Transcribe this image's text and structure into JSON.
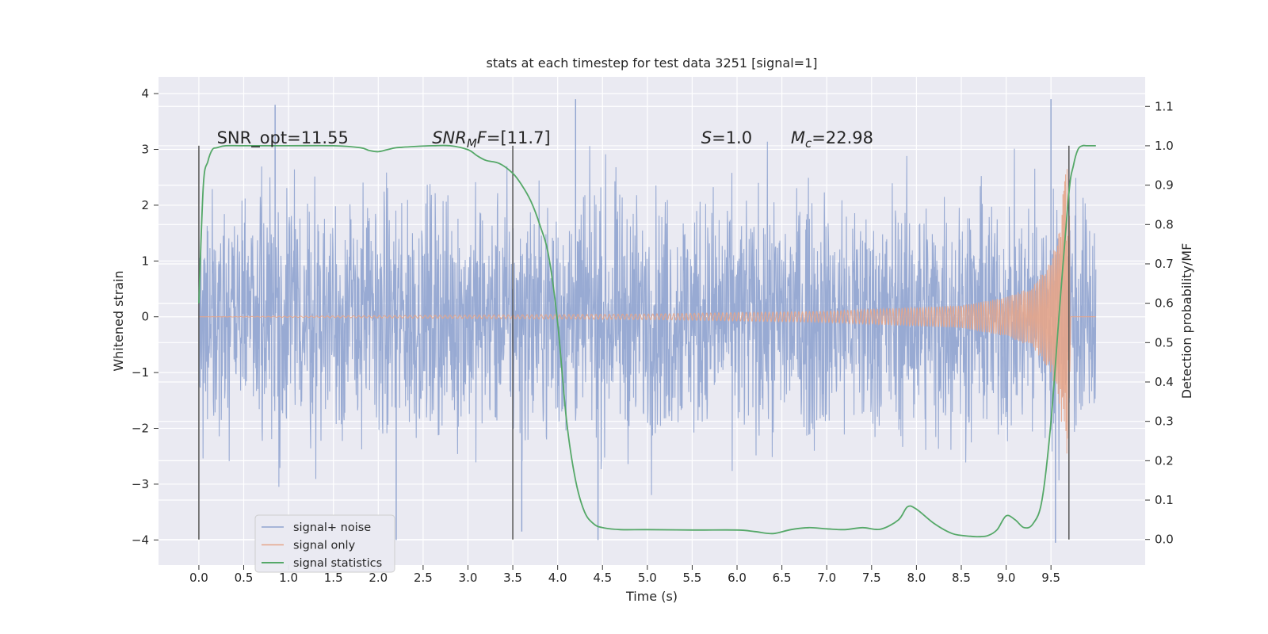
{
  "chart_data": {
    "type": "line",
    "title": "stats at each timestep for test data 3251 [signal=1]",
    "xlabel": "Time (s)",
    "ylabel": "Whitened strain",
    "y2label": "Detection probability/MF",
    "xlim": [
      -0.45,
      10.55
    ],
    "ylim": [
      -4.45,
      4.3
    ],
    "y2lim": [
      -0.065,
      1.175
    ],
    "x_ticks": [
      "0.0",
      "0.5",
      "1.0",
      "1.5",
      "2.0",
      "2.5",
      "3.0",
      "3.5",
      "4.0",
      "4.5",
      "5.0",
      "5.5",
      "6.0",
      "6.5",
      "7.0",
      "7.5",
      "8.0",
      "8.5",
      "9.0",
      "9.5"
    ],
    "y_ticks": [
      "4",
      "3",
      "2",
      "1",
      "0",
      "−1",
      "−2",
      "−3",
      "−4"
    ],
    "y2_ticks": [
      "1.1",
      "1.0",
      "0.9",
      "0.8",
      "0.7",
      "0.6",
      "0.5",
      "0.4",
      "0.3",
      "0.2",
      "0.1",
      "0.0"
    ],
    "grid": true,
    "legend_position": "lower-left",
    "annotations": [
      {
        "text": "SNR_opt=11.55",
        "x": 0.2,
        "y": 1.0
      },
      {
        "text": "SNR_MF=[11.7]",
        "x": 2.6,
        "y": 1.0
      },
      {
        "text": "S=1.0",
        "x": 5.6,
        "y": 1.0
      },
      {
        "text": "M_c=22.98",
        "x": 6.6,
        "y": 1.0
      }
    ],
    "vlines": [
      {
        "x": 0.0,
        "y2_range": [
          0.0,
          1.0
        ]
      },
      {
        "x": 3.5,
        "y2_range": [
          0.0,
          1.0
        ]
      },
      {
        "x": 9.7,
        "y2_range": [
          0.0,
          1.0
        ]
      }
    ],
    "series": [
      {
        "name": "signal+ noise",
        "color": "#8fa3cf",
        "axis": "left",
        "x_range": [
          0.0,
          10.0
        ],
        "amplitude_envelope": [
          -3.3,
          3.5
        ],
        "peaks": [
          {
            "x": 0.85,
            "y": 3.8
          },
          {
            "x": 4.2,
            "y": 3.9
          },
          {
            "x": 9.5,
            "y": 3.9
          },
          {
            "x": 9.55,
            "y": -4.05
          },
          {
            "x": 2.2,
            "y": -4.0
          },
          {
            "x": 4.45,
            "y": -4.0
          },
          {
            "x": 3.6,
            "y": -3.85
          }
        ]
      },
      {
        "name": "signal only",
        "color": "#e5a58a",
        "axis": "left",
        "description_envelope": [
          [
            0.0,
            0.0
          ],
          [
            5.0,
            0.05
          ],
          [
            7.0,
            0.1
          ],
          [
            8.5,
            0.2
          ],
          [
            9.0,
            0.35
          ],
          [
            9.3,
            0.55
          ],
          [
            9.5,
            1.0
          ],
          [
            9.6,
            1.6
          ],
          [
            9.65,
            2.5
          ],
          [
            9.7,
            2.8
          ],
          [
            9.72,
            0.0
          ]
        ]
      },
      {
        "name": "signal statistics",
        "color": "#55a868",
        "axis": "right",
        "x": [
          0.0,
          0.05,
          0.1,
          0.15,
          0.2,
          0.3,
          0.5,
          1.0,
          1.5,
          1.8,
          1.9,
          2.0,
          2.1,
          2.2,
          2.4,
          2.6,
          2.8,
          3.0,
          3.1,
          3.2,
          3.35,
          3.5,
          3.6,
          3.7,
          3.8,
          3.9,
          4.0,
          4.1,
          4.2,
          4.3,
          4.4,
          4.5,
          4.7,
          5.0,
          5.5,
          6.0,
          6.2,
          6.4,
          6.6,
          6.8,
          7.0,
          7.2,
          7.4,
          7.6,
          7.8,
          7.9,
          8.0,
          8.2,
          8.4,
          8.6,
          8.7,
          8.8,
          8.9,
          9.0,
          9.1,
          9.2,
          9.3,
          9.4,
          9.5,
          9.6,
          9.7,
          9.75,
          9.8,
          9.85,
          9.9,
          9.95,
          10.0
        ],
        "y": [
          0.6,
          0.9,
          0.96,
          0.99,
          0.995,
          1.0,
          1.0,
          1.0,
          1.0,
          0.995,
          0.988,
          0.985,
          0.99,
          0.995,
          0.998,
          1.0,
          1.0,
          0.99,
          0.975,
          0.963,
          0.955,
          0.93,
          0.9,
          0.86,
          0.8,
          0.72,
          0.55,
          0.3,
          0.15,
          0.07,
          0.04,
          0.03,
          0.025,
          0.025,
          0.024,
          0.024,
          0.02,
          0.015,
          0.025,
          0.03,
          0.027,
          0.025,
          0.03,
          0.026,
          0.05,
          0.083,
          0.077,
          0.04,
          0.015,
          0.008,
          0.007,
          0.01,
          0.025,
          0.06,
          0.05,
          0.03,
          0.04,
          0.1,
          0.3,
          0.6,
          0.88,
          0.95,
          0.99,
          1.0,
          1.0,
          1.0,
          1.0
        ]
      }
    ]
  }
}
